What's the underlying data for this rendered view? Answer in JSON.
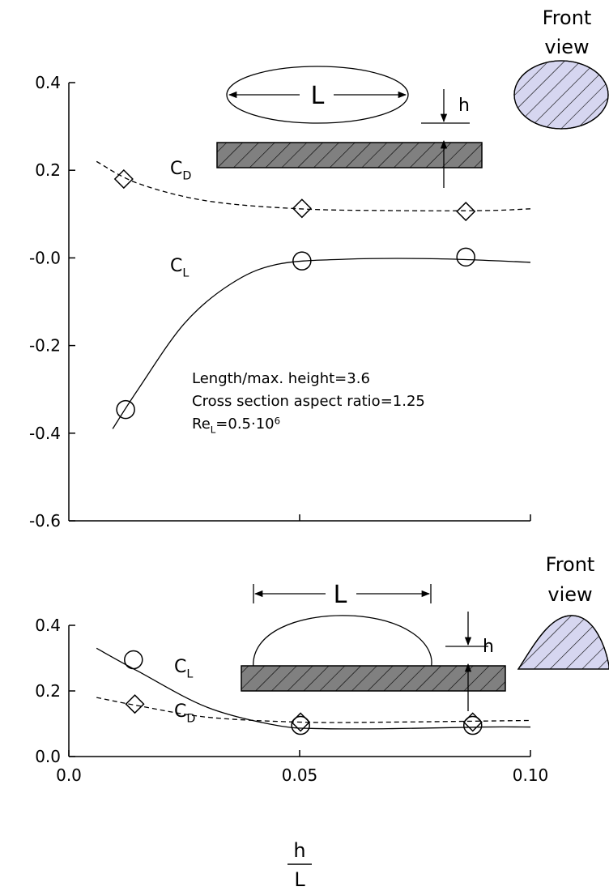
{
  "chart_data": [
    {
      "type": "scatter",
      "xlim": [
        0,
        0.1
      ],
      "ylim": [
        -0.6,
        0.4
      ],
      "yticks": [
        0.4,
        0.2,
        {
          "value": 0,
          "label": "-0.0"
        },
        -0.2,
        -0.4,
        -0.6
      ],
      "series": [
        {
          "marker": "diamond",
          "x": [
            0.0119,
            0.0505,
            0.086
          ],
          "values": [
            0.18,
            0.113,
            0.106
          ]
        },
        {
          "marker": "circle",
          "x": [
            0.0123,
            0.0505,
            0.086
          ],
          "values": [
            -0.346,
            -0.007,
            0.002
          ]
        }
      ],
      "curves": [
        {
          "style": "dashed",
          "label": {
            "main": "C",
            "sub": "D"
          },
          "x": [
            0.006,
            0.015,
            0.03,
            0.05,
            0.07,
            0.09,
            0.1
          ],
          "values": [
            0.22,
            0.17,
            0.13,
            0.112,
            0.108,
            0.108,
            0.112
          ]
        },
        {
          "style": "solid",
          "label": {
            "main": "C",
            "sub": "L"
          },
          "x": [
            0.0095,
            0.015,
            0.025,
            0.035,
            0.045,
            0.06,
            0.08,
            0.1
          ],
          "values": [
            -0.39,
            -0.3,
            -0.15,
            -0.06,
            -0.015,
            -0.003,
            -0.002,
            -0.01
          ]
        }
      ],
      "annotations": [
        "Length/max. height=3.6",
        "Cross section aspect ratio=1.25",
        {
          "main": "Re",
          "sub": "L",
          "rest": "=0.5·10",
          "sup": "6"
        }
      ],
      "diagram": {
        "length_label": "L",
        "height_label": "h",
        "front_view": [
          "Front",
          "view"
        ]
      }
    },
    {
      "type": "scatter",
      "xlim": [
        0,
        0.1
      ],
      "ylim": [
        0,
        0.4
      ],
      "xticks": [
        {
          "value": 0,
          "label": "0.0"
        },
        0.05,
        {
          "value": 0.1,
          "label": "0.10"
        }
      ],
      "yticks": [
        0.4,
        0.2,
        {
          "value": 0,
          "label": "0.0"
        }
      ],
      "xlabel": {
        "numerator": "h",
        "denominator": "L"
      },
      "series": [
        {
          "marker": "circle",
          "x": [
            0.014,
            0.0502,
            0.0875
          ],
          "values": [
            0.295,
            0.095,
            0.095
          ]
        },
        {
          "marker": "diamond",
          "x": [
            0.0143,
            0.0502,
            0.0875
          ],
          "values": [
            0.16,
            0.105,
            0.105
          ]
        }
      ],
      "curves": [
        {
          "style": "solid",
          "label": {
            "main": "C",
            "sub": "L"
          },
          "x": [
            0.006,
            0.015,
            0.03,
            0.045,
            0.055,
            0.07,
            0.09,
            0.1
          ],
          "values": [
            0.33,
            0.26,
            0.15,
            0.095,
            0.085,
            0.085,
            0.09,
            0.09
          ]
        },
        {
          "style": "dashed",
          "label": {
            "main": "C",
            "sub": "D"
          },
          "x": [
            0.006,
            0.015,
            0.03,
            0.05,
            0.07,
            0.1
          ],
          "values": [
            0.18,
            0.155,
            0.12,
            0.105,
            0.105,
            0.11
          ]
        }
      ],
      "diagram": {
        "length_label": "L",
        "height_label": "h",
        "front_view": [
          "Front",
          "view"
        ]
      }
    }
  ]
}
